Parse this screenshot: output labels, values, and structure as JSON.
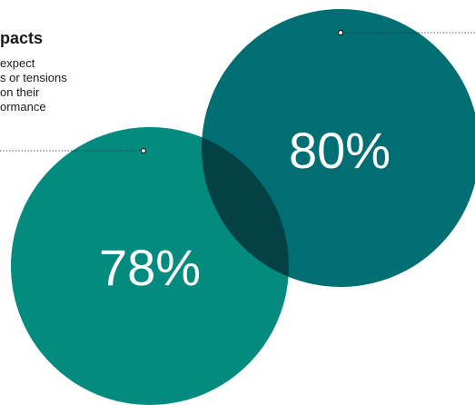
{
  "heading": "pacts",
  "description_lines": [
    "expect",
    "s or tensions",
    "on their",
    "ormance"
  ],
  "circles": {
    "left": {
      "value": "78%",
      "color": "#048b80"
    },
    "right": {
      "value": "80%",
      "color": "#006e72"
    },
    "overlap_color": "#034145"
  }
}
